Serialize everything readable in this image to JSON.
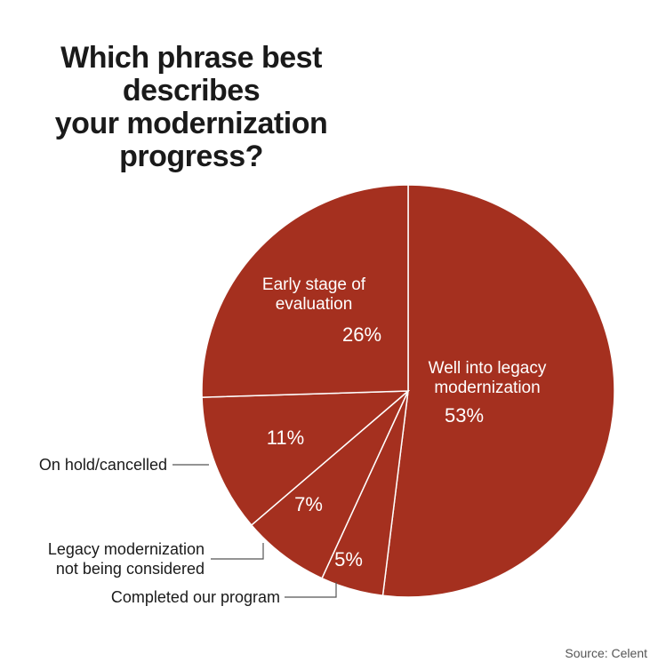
{
  "chart_data": {
    "type": "pie",
    "title": [
      "Which phrase best",
      "describes",
      "your modernization",
      "progress?"
    ],
    "slices": [
      {
        "key": "well_into",
        "label": [
          "Well into legacy",
          "modernization"
        ],
        "pct_text": "53%",
        "value": 53
      },
      {
        "key": "completed",
        "label": [
          "Completed our program"
        ],
        "pct_text": "5%",
        "value": 5
      },
      {
        "key": "not_considered",
        "label": [
          "Legacy modernization",
          "not being considered"
        ],
        "pct_text": "7%",
        "value": 7
      },
      {
        "key": "on_hold",
        "label": [
          "On hold/cancelled"
        ],
        "pct_text": "11%",
        "value": 11
      },
      {
        "key": "early_stage",
        "label": [
          "Early stage of",
          "evaluation"
        ],
        "pct_text": "26%",
        "value": 26
      }
    ],
    "colors": {
      "slice": "#a5301f",
      "border": "#ffffff"
    },
    "source": "Source: Celent"
  }
}
